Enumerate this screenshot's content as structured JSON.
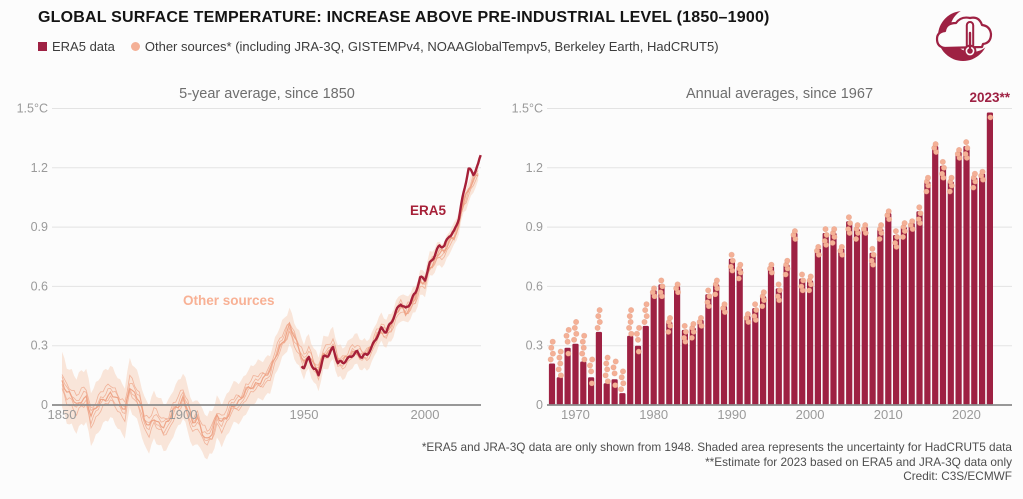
{
  "header": {
    "title": "GLOBAL SURFACE TEMPERATURE: INCREASE ABOVE PRE-INDUSTRIAL LEVEL (1850–1900)"
  },
  "legend": {
    "era5_label": "ERA5 data",
    "other_label": "Other sources* (including JRA-3Q, GISTEMPv4, NOAAGlobalTempv5, Berkeley Earth, HadCRUT5)"
  },
  "logo_icon": "crescent-cloud-thermometer-icon",
  "colors": {
    "accent_red": "#9e2143",
    "line_red": "#a62038",
    "band_peach": "#f6d6c2",
    "dot_peach": "#f4b096",
    "dot_stroke": "#d98a6d",
    "member_line": "#eda184",
    "label_peach": "#f8b195",
    "grid": "#e3e3e3",
    "axis_line": "#8a8a8a",
    "axis_text": "#9a9a9a"
  },
  "footnotes": {
    "line1": "*ERA5 and JRA-3Q data are only shown from 1948. Shaded area represents the uncertainty for HadCRUT5 data",
    "line2": "**Estimate for 2023 based on ERA5 and JRA-3Q data only",
    "line3": "Credit: C3S/ECMWF"
  },
  "chart_data": [
    {
      "id": "five_year_average",
      "type": "line",
      "title": "5-year average, since 1850",
      "annotations": {
        "other_sources": "Other sources",
        "era5": "ERA5"
      },
      "y_ticks": [
        {
          "v": 0,
          "label": "0"
        },
        {
          "v": 0.3,
          "label": "0.3"
        },
        {
          "v": 0.6,
          "label": "0.6"
        },
        {
          "v": 0.9,
          "label": "0.9"
        },
        {
          "v": 1.2,
          "label": "1.2"
        },
        {
          "v": 1.5,
          "label": "1.5°C"
        }
      ],
      "x_ticks": [
        1850,
        1900,
        1950,
        2000
      ],
      "xlim": [
        1850,
        2023
      ],
      "ylim": [
        -0.35,
        1.55
      ],
      "grid": true,
      "band": {
        "description": "HadCRUT5 uncertainty",
        "halfwidth_start": 0.14,
        "halfwidth_end": 0.05
      },
      "member_offsets": [
        -0.045,
        -0.02,
        0,
        0.02,
        0.045
      ],
      "series": [
        {
          "name": "Other sources (central estimate)",
          "x": [
            1850,
            1852,
            1854,
            1856,
            1858,
            1860,
            1862,
            1864,
            1866,
            1868,
            1870,
            1872,
            1874,
            1876,
            1878,
            1880,
            1882,
            1884,
            1886,
            1888,
            1890,
            1892,
            1894,
            1896,
            1898,
            1900,
            1902,
            1904,
            1906,
            1908,
            1910,
            1912,
            1914,
            1916,
            1918,
            1920,
            1922,
            1924,
            1926,
            1928,
            1930,
            1932,
            1934,
            1936,
            1938,
            1940,
            1942,
            1944,
            1946,
            1948,
            1950,
            1952,
            1954,
            1956,
            1958,
            1960,
            1962,
            1964,
            1966,
            1968,
            1970,
            1972,
            1974,
            1976,
            1978,
            1980,
            1982,
            1984,
            1986,
            1988,
            1990,
            1992,
            1994,
            1996,
            1998,
            2000,
            2002,
            2004,
            2006,
            2008,
            2010,
            2012,
            2014,
            2016,
            2018,
            2020,
            2022
          ],
          "values": [
            0.12,
            0.06,
            0.04,
            0.0,
            0.03,
            0.04,
            -0.06,
            -0.02,
            0.02,
            0.04,
            0.06,
            0.04,
            0.0,
            -0.03,
            0.1,
            0.06,
            0.02,
            -0.08,
            -0.11,
            -0.06,
            -0.09,
            -0.11,
            -0.09,
            -0.03,
            0.0,
            0.04,
            -0.02,
            -0.1,
            -0.07,
            -0.14,
            -0.17,
            -0.14,
            -0.06,
            -0.09,
            -0.06,
            -0.01,
            0.01,
            0.02,
            0.07,
            0.09,
            0.11,
            0.12,
            0.14,
            0.17,
            0.24,
            0.3,
            0.34,
            0.4,
            0.34,
            0.28,
            0.22,
            0.26,
            0.2,
            0.17,
            0.26,
            0.27,
            0.3,
            0.22,
            0.22,
            0.24,
            0.27,
            0.27,
            0.25,
            0.26,
            0.29,
            0.35,
            0.38,
            0.36,
            0.4,
            0.46,
            0.5,
            0.47,
            0.5,
            0.54,
            0.62,
            0.62,
            0.7,
            0.73,
            0.77,
            0.77,
            0.83,
            0.85,
            0.92,
            1.03,
            1.08,
            1.14,
            1.17
          ]
        },
        {
          "name": "ERA5 (shown from 1948)",
          "x": [
            1950,
            1952,
            1954,
            1956,
            1958,
            1960,
            1962,
            1964,
            1966,
            1968,
            1970,
            1972,
            1974,
            1976,
            1978,
            1980,
            1982,
            1984,
            1986,
            1988,
            1990,
            1992,
            1994,
            1996,
            1998,
            2000,
            2002,
            2004,
            2006,
            2008,
            2010,
            2012,
            2014,
            2016,
            2018,
            2020,
            2022,
            2023
          ],
          "values": [
            0.2,
            0.24,
            0.18,
            0.15,
            0.24,
            0.26,
            0.29,
            0.21,
            0.21,
            0.23,
            0.26,
            0.27,
            0.24,
            0.25,
            0.29,
            0.35,
            0.39,
            0.37,
            0.41,
            0.47,
            0.52,
            0.49,
            0.52,
            0.56,
            0.64,
            0.64,
            0.72,
            0.76,
            0.8,
            0.8,
            0.86,
            0.88,
            0.95,
            1.07,
            1.19,
            1.17,
            1.22,
            1.27
          ]
        }
      ]
    },
    {
      "id": "annual_averages",
      "type": "bar",
      "title": "Annual averages, since 1967",
      "label_2023": "2023**",
      "y_ticks": [
        {
          "v": 0,
          "label": "0"
        },
        {
          "v": 0.3,
          "label": "0.3"
        },
        {
          "v": 0.6,
          "label": "0.6"
        },
        {
          "v": 0.9,
          "label": "0.9"
        },
        {
          "v": 1.2,
          "label": "1.2"
        },
        {
          "v": 1.5,
          "label": "1.5°C"
        }
      ],
      "x_ticks": [
        1970,
        1980,
        1990,
        2000,
        2010,
        2020
      ],
      "start_year": 1967,
      "ylim": [
        0,
        1.55
      ],
      "grid": true,
      "values": [
        0.21,
        0.14,
        0.29,
        0.31,
        0.22,
        0.14,
        0.37,
        0.11,
        0.13,
        0.06,
        0.35,
        0.3,
        0.4,
        0.58,
        0.61,
        0.42,
        0.6,
        0.38,
        0.39,
        0.43,
        0.56,
        0.61,
        0.5,
        0.74,
        0.69,
        0.45,
        0.49,
        0.55,
        0.7,
        0.59,
        0.71,
        0.87,
        0.64,
        0.63,
        0.79,
        0.87,
        0.87,
        0.79,
        0.93,
        0.89,
        0.9,
        0.77,
        0.89,
        0.97,
        0.86,
        0.9,
        0.92,
        0.98,
        1.13,
        1.31,
        1.21,
        1.13,
        1.28,
        1.31,
        1.15,
        1.17,
        1.48
      ],
      "dot_patterns_early": [
        [
          [
            0.02,
            -0.6
          ],
          [
            0.05,
            0.4
          ],
          [
            0.08,
            -0.3
          ],
          [
            0.11,
            0.3
          ]
        ],
        [
          [
            0.01,
            0.5
          ],
          [
            0.04,
            -0.5
          ],
          [
            0.07,
            0.2
          ],
          [
            0.1,
            -0.2
          ],
          [
            0.13,
            0.4
          ]
        ],
        [
          [
            -0.03,
            0.3
          ],
          [
            0.03,
            0.0
          ],
          [
            0.06,
            -0.5
          ],
          [
            0.09,
            0.5
          ]
        ]
      ],
      "dot_patterns_late": [
        [
          [
            -0.05,
            -0.4
          ],
          [
            -0.02,
            0.4
          ],
          [
            0.0,
            -0.2
          ],
          [
            0.02,
            0.3
          ]
        ],
        [
          [
            -0.03,
            0.4
          ],
          [
            -0.01,
            -0.4
          ],
          [
            0.01,
            0.2
          ]
        ],
        [
          [
            -0.06,
            0.2
          ],
          [
            -0.04,
            -0.4
          ],
          [
            -0.01,
            0.4
          ],
          [
            0.02,
            -0.1
          ]
        ]
      ],
      "dots_2023": [
        [
          -0.025,
          0.2
        ]
      ]
    }
  ]
}
